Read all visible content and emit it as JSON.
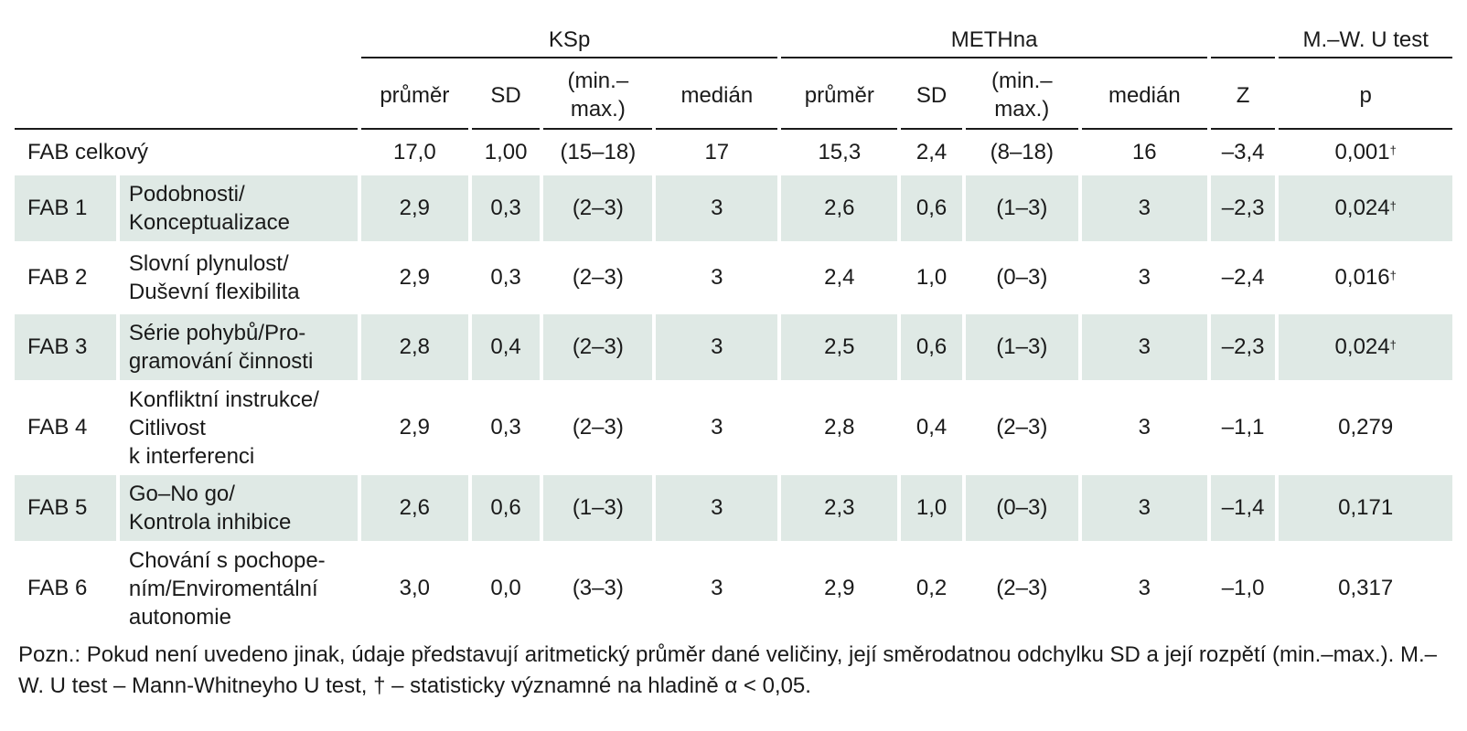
{
  "groups": {
    "ksp": "KSp",
    "methna": "METHna",
    "test": "M.–W. U test"
  },
  "subheaders": {
    "mean": "průměr",
    "sd": "SD",
    "range": "(min.–\nmax.)",
    "median": "medián",
    "z": "Z",
    "p": "p"
  },
  "total": {
    "label": "FAB celkový",
    "ksp_mean": "17,0",
    "ksp_sd": "1,00",
    "ksp_range": "(15–18)",
    "ksp_median": "17",
    "meth_mean": "15,3",
    "meth_sd": "2,4",
    "meth_range": "(8–18)",
    "meth_median": "16",
    "z": "–3,4",
    "p": "0,001",
    "sig": "†"
  },
  "rows": [
    {
      "code": "FAB 1",
      "desc": "Podobnosti/\nKonceptualizace",
      "ksp_mean": "2,9",
      "ksp_sd": "0,3",
      "ksp_range": "(2–3)",
      "ksp_median": "3",
      "meth_mean": "2,6",
      "meth_sd": "0,6",
      "meth_range": "(1–3)",
      "meth_median": "3",
      "z": "–2,3",
      "p": "0,024",
      "sig": "†"
    },
    {
      "code": "FAB 2",
      "desc": "Slovní plynulost/\nDuševní flexibilita",
      "ksp_mean": "2,9",
      "ksp_sd": "0,3",
      "ksp_range": "(2–3)",
      "ksp_median": "3",
      "meth_mean": "2,4",
      "meth_sd": "1,0",
      "meth_range": "(0–3)",
      "meth_median": "3",
      "z": "–2,4",
      "p": "0,016",
      "sig": "†"
    },
    {
      "code": "FAB 3",
      "desc": "Série pohybů/Pro-\ngramování činnosti",
      "ksp_mean": "2,8",
      "ksp_sd": "0,4",
      "ksp_range": "(2–3)",
      "ksp_median": "3",
      "meth_mean": "2,5",
      "meth_sd": "0,6",
      "meth_range": "(1–3)",
      "meth_median": "3",
      "z": "–2,3",
      "p": "0,024",
      "sig": "†"
    },
    {
      "code": "FAB 4",
      "desc": "Konfliktní instrukce/\nCitlivost\nk interferenci",
      "ksp_mean": "2,9",
      "ksp_sd": "0,3",
      "ksp_range": "(2–3)",
      "ksp_median": "3",
      "meth_mean": "2,8",
      "meth_sd": "0,4",
      "meth_range": "(2–3)",
      "meth_median": "3",
      "z": "–1,1",
      "p": "0,279",
      "sig": ""
    },
    {
      "code": "FAB 5",
      "desc": "Go–No go/\nKontrola inhibice",
      "ksp_mean": "2,6",
      "ksp_sd": "0,6",
      "ksp_range": "(1–3)",
      "ksp_median": "3",
      "meth_mean": "2,3",
      "meth_sd": "1,0",
      "meth_range": "(0–3)",
      "meth_median": "3",
      "z": "–1,4",
      "p": "0,171",
      "sig": ""
    },
    {
      "code": "FAB 6",
      "desc": "Chování s pochope-\nním/Enviromentální\nautonomie",
      "ksp_mean": "3,0",
      "ksp_sd": "0,0",
      "ksp_range": "(3–3)",
      "ksp_median": "3",
      "meth_mean": "2,9",
      "meth_sd": "0,2",
      "meth_range": "(2–3)",
      "meth_median": "3",
      "z": "–1,0",
      "p": "0,317",
      "sig": ""
    }
  ],
  "note": "Pozn.: Pokud není uvedeno jinak, údaje představují aritmetický průměr dané veličiny, její směrodatnou odchylku SD a její rozpětí (min.–max.). M.–W. U test – Mann-Whitneyho U test, † – statisticky významné na hladině α < 0,05."
}
